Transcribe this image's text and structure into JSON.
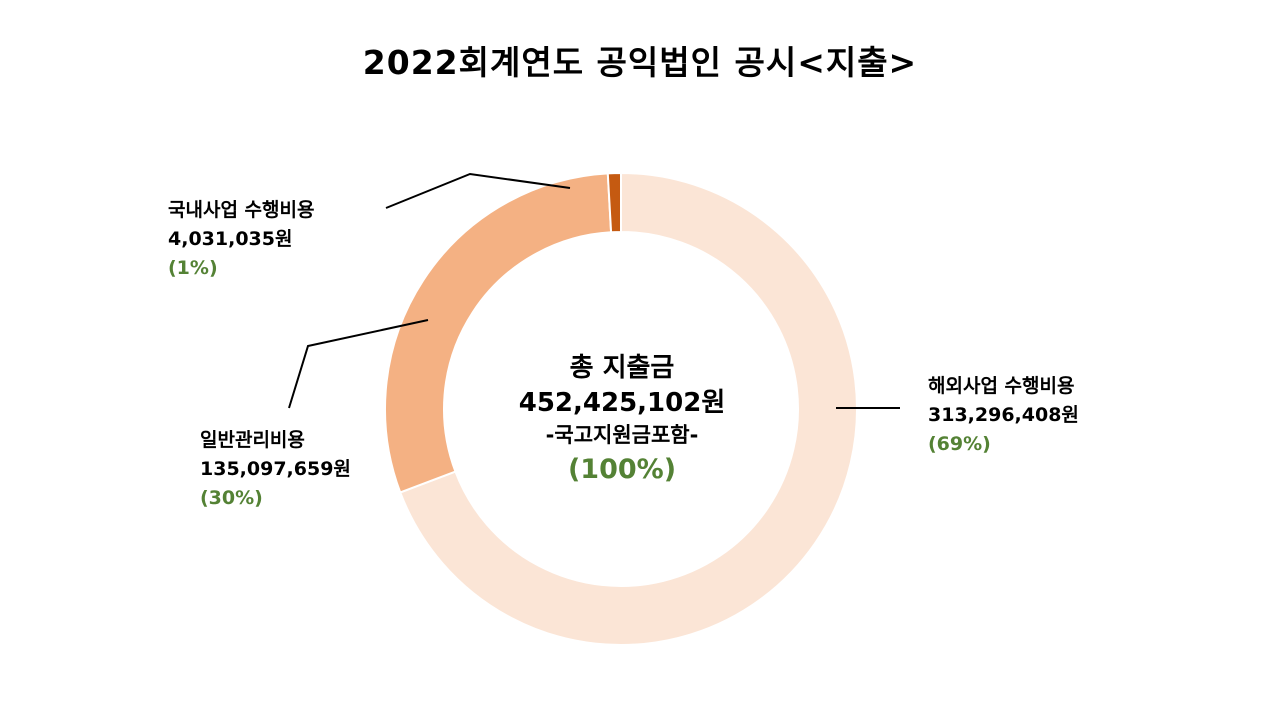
{
  "title": "2022회계연도 공익법인 공시<지출>",
  "center": {
    "line1": "총 지출금",
    "line2": "452,425,102원",
    "line3": "-국고지원금포함-",
    "line4": "(100%)"
  },
  "labels": {
    "domestic": {
      "name": "국내사업 수행비용",
      "amount": "4,031,035원",
      "pct": "(1%)"
    },
    "general": {
      "name": "일반관리비용",
      "amount": "135,097,659원",
      "pct": "(30%)"
    },
    "overseas": {
      "name": "해외사업 수행비용",
      "amount": "313,296,408원",
      "pct": "(69%)"
    }
  },
  "colors": {
    "overseas": "#FBE5D6",
    "general": "#F4B183",
    "domestic": "#C55A11",
    "percent_text": "#548235",
    "leader_line": "#000000"
  },
  "chart_data": {
    "type": "pie",
    "variant": "donut",
    "title": "2022회계연도 공익법인 공시<지출>",
    "total": 452425102,
    "slices": [
      {
        "name": "해외사업 수행비용",
        "value": 313296408,
        "percent": 69,
        "color": "#FBE5D6"
      },
      {
        "name": "일반관리비용",
        "value": 135097659,
        "percent": 30,
        "color": "#F4B183"
      },
      {
        "name": "국내사업 수행비용",
        "value": 4031035,
        "percent": 1,
        "color": "#C55A11"
      }
    ]
  }
}
